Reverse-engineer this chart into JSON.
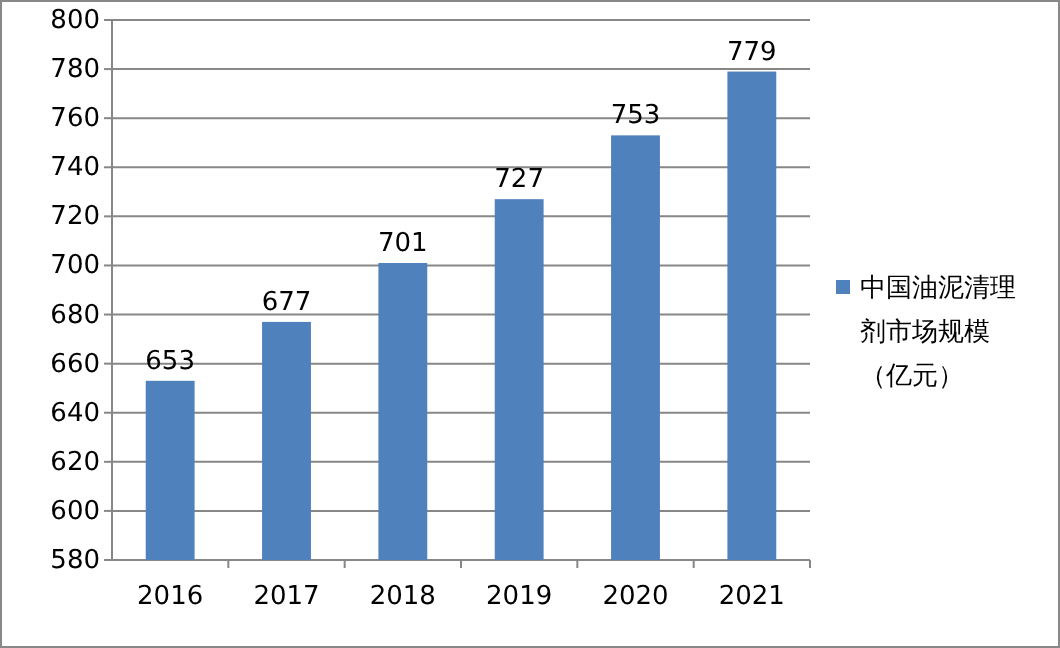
{
  "chart_data": {
    "type": "bar",
    "categories": [
      "2016",
      "2017",
      "2018",
      "2019",
      "2020",
      "2021"
    ],
    "series": [
      {
        "name": "中国油泥清理剂市场规模（亿元）",
        "color": "#4f81bd",
        "values": [
          653,
          677,
          701,
          727,
          753,
          779
        ]
      }
    ],
    "ylim": [
      580,
      800
    ],
    "yticks": [
      580,
      600,
      620,
      640,
      660,
      680,
      700,
      720,
      740,
      760,
      780,
      800
    ],
    "grid": "y",
    "legend": "right",
    "data_labels": true
  }
}
